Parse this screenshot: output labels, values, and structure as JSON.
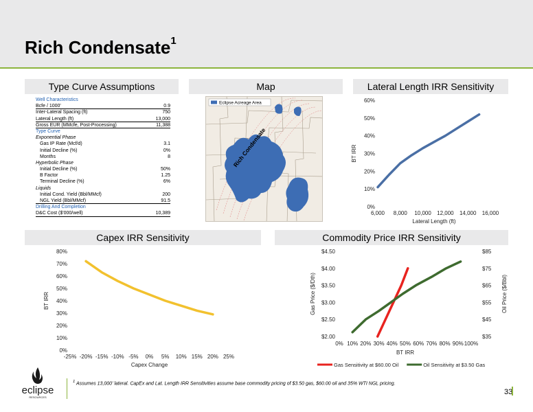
{
  "page": {
    "title": "Rich Condensate",
    "title_sup": "1",
    "footnote_sup": "1",
    "footnote": "Assumes 13,000' lateral. CapEx and Lat. Length IRR Sensitivities assume base commodity pricing of $3.50 gas, $60.00 oil and 35% WTI NGL pricing.",
    "page_number": "33",
    "accent_color": "#8cb43c",
    "logo_text": "eclipse",
    "logo_subtext": "RESOURCES"
  },
  "panels": {
    "type_curve": "Type Curve Assumptions",
    "map": "Map",
    "lateral": "Lateral Length IRR Sensitivity",
    "capex": "Capex IRR Sensitivity",
    "commodity": "Commodity Price IRR Sensitivity"
  },
  "type_curve_table": [
    {
      "k": "Well Characteristics",
      "v": "",
      "style": "section"
    },
    {
      "k": "Bcfe / 1000'",
      "v": "0.9",
      "style": "line"
    },
    {
      "k": "Inter-Lateral Spacing (ft)",
      "v": "750",
      "style": ""
    },
    {
      "k": "Lateral Length (ft)",
      "v": "13,000",
      "style": "line"
    },
    {
      "k": "Gross EUR (MMcfe, Post-Processing)",
      "v": "11,388",
      "style": "line"
    },
    {
      "k": "Type Curve",
      "v": "",
      "style": "section"
    },
    {
      "k": "Exponential Phase",
      "v": "",
      "style": "sub"
    },
    {
      "k": "Gas IP Rate (Mcf/d)",
      "v": "3.1",
      "style": "indent"
    },
    {
      "k": "Initial Decline (%)",
      "v": "0%",
      "style": "indent"
    },
    {
      "k": "Months",
      "v": "8",
      "style": "indent"
    },
    {
      "k": "Hyperbolic Phase",
      "v": "",
      "style": "sub"
    },
    {
      "k": "Initial Decline (%)",
      "v": "50%",
      "style": "indent"
    },
    {
      "k": "B Factor",
      "v": "1.25",
      "style": "indent"
    },
    {
      "k": "Terminal Decline (%)",
      "v": "6%",
      "style": "indent"
    },
    {
      "k": "Liquids",
      "v": "",
      "style": "sub"
    },
    {
      "k": "Initial Cond. Yield (Bbl/MMcf)",
      "v": "200",
      "style": "indent"
    },
    {
      "k": "NGL Yield (Bbl/MMcf)",
      "v": "91.5",
      "style": "indent line"
    },
    {
      "k": "Drilling And Completion",
      "v": "",
      "style": "section"
    },
    {
      "k": "D&C Cost ($'000/well)",
      "v": "10,389",
      "style": "line"
    }
  ],
  "map": {
    "legend_label": "Eclipse Acreage Area",
    "area_label": "Rich Condensate",
    "acreage_color": "#3d6db4"
  },
  "chart_data": [
    {
      "id": "lateral",
      "type": "line",
      "x": [
        6000,
        7000,
        8000,
        9000,
        10000,
        11000,
        12000,
        13000,
        14000,
        15000
      ],
      "series": [
        {
          "values": [
            11,
            18,
            24.5,
            29,
            33,
            36.5,
            40,
            44,
            48,
            52
          ],
          "color": "#4a6fa5"
        }
      ],
      "xlim": [
        6000,
        16000
      ],
      "ylim": [
        0,
        60
      ],
      "xticks": [
        "6,000",
        "8,000",
        "10,000",
        "12,000",
        "14,000",
        "16,000"
      ],
      "yticks": [
        "0%",
        "10%",
        "20%",
        "30%",
        "40%",
        "50%",
        "60%"
      ],
      "xlabel": "Lateral Length (ft)",
      "ylabel": "BT IRR",
      "grid": false
    },
    {
      "id": "capex",
      "type": "line",
      "x": [
        -20,
        -15,
        -10,
        -5,
        0,
        5,
        10,
        15,
        20
      ],
      "series": [
        {
          "values": [
            72,
            63,
            56,
            50,
            45,
            40,
            36,
            32,
            29
          ],
          "color": "#f2c12e"
        }
      ],
      "xlim": [
        -25,
        25
      ],
      "ylim": [
        0,
        80
      ],
      "xticks": [
        "-25%",
        "-20%",
        "-15%",
        "-10%",
        "-5%",
        "0%",
        "5%",
        "10%",
        "15%",
        "20%",
        "25%"
      ],
      "yticks": [
        "0%",
        "10%",
        "20%",
        "30%",
        "40%",
        "50%",
        "60%",
        "70%",
        "80%"
      ],
      "xlabel": "Capex Change",
      "ylabel": "BT IRR",
      "grid": false
    },
    {
      "id": "commodity",
      "type": "line",
      "xlim": [
        0,
        100
      ],
      "xticks": [
        "0%",
        "10%",
        "20%",
        "30%",
        "40%",
        "50%",
        "60%",
        "70%",
        "80%",
        "90%",
        "100%"
      ],
      "xlabel": "BT IRR",
      "y_left": {
        "label": "Gas Price ($/Dth)",
        "lim": [
          2.0,
          4.5
        ],
        "ticks": [
          "$2.00",
          "$2.50",
          "$3.00",
          "$3.50",
          "$4.00",
          "$4.50"
        ]
      },
      "y_right": {
        "label": "Oil Price ($/Bbl)",
        "lim": [
          35,
          85
        ],
        "ticks": [
          "$35",
          "$45",
          "$55",
          "$65",
          "$75",
          "$85"
        ]
      },
      "series": [
        {
          "name": "Gas Sensitivity at $60.00 Oil",
          "axis": "left",
          "color": "#e8231f",
          "x": [
            29,
            35,
            41,
            47,
            52
          ],
          "values": [
            2.0,
            2.5,
            3.0,
            3.5,
            4.0
          ]
        },
        {
          "name": "Oil Sensitivity at $3.50 Gas",
          "axis": "right",
          "color": "#3e6b2f",
          "x": [
            10,
            20,
            30,
            39,
            48,
            58,
            70,
            81,
            92
          ],
          "values": [
            37.5,
            45,
            50,
            55,
            60,
            65,
            70,
            75,
            79
          ]
        }
      ],
      "legend": "bottom",
      "grid": false
    }
  ]
}
